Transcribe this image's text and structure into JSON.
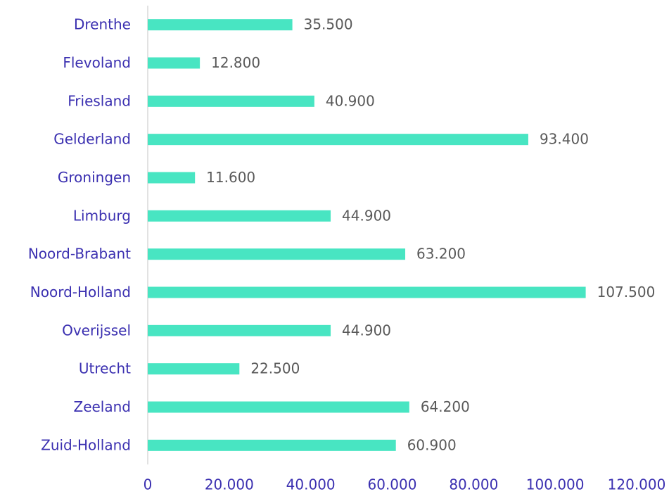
{
  "chart_data": {
    "type": "bar",
    "orientation": "horizontal",
    "categories": [
      "Drenthe",
      "Flevoland",
      "Friesland",
      "Gelderland",
      "Groningen",
      "Limburg",
      "Noord-Brabant",
      "Noord-Holland",
      "Overijssel",
      "Utrecht",
      "Zeeland",
      "Zuid-Holland"
    ],
    "values": [
      35500,
      12800,
      40900,
      93400,
      11600,
      44900,
      63200,
      107500,
      44900,
      22500,
      64200,
      60900
    ],
    "value_labels": [
      "35.500",
      "12.800",
      "40.900",
      "93.400",
      "11.600",
      "44.900",
      "63.200",
      "107.500",
      "44.900",
      "22.500",
      "64.200",
      "60.900"
    ],
    "color": "#48e5c2",
    "xlim": [
      0,
      120000
    ],
    "xticks": [
      0,
      {
        "value": 20000,
        "label": "20.000"
      },
      {
        "value": 40000,
        "label": "40.000"
      },
      {
        "value": 60000,
        "label": "60.000"
      },
      {
        "value": 80000,
        "label": "80.000"
      },
      {
        "value": 100000,
        "label": "100.000"
      },
      {
        "value": 120000,
        "label": "120.000"
      }
    ],
    "grid": false
  }
}
